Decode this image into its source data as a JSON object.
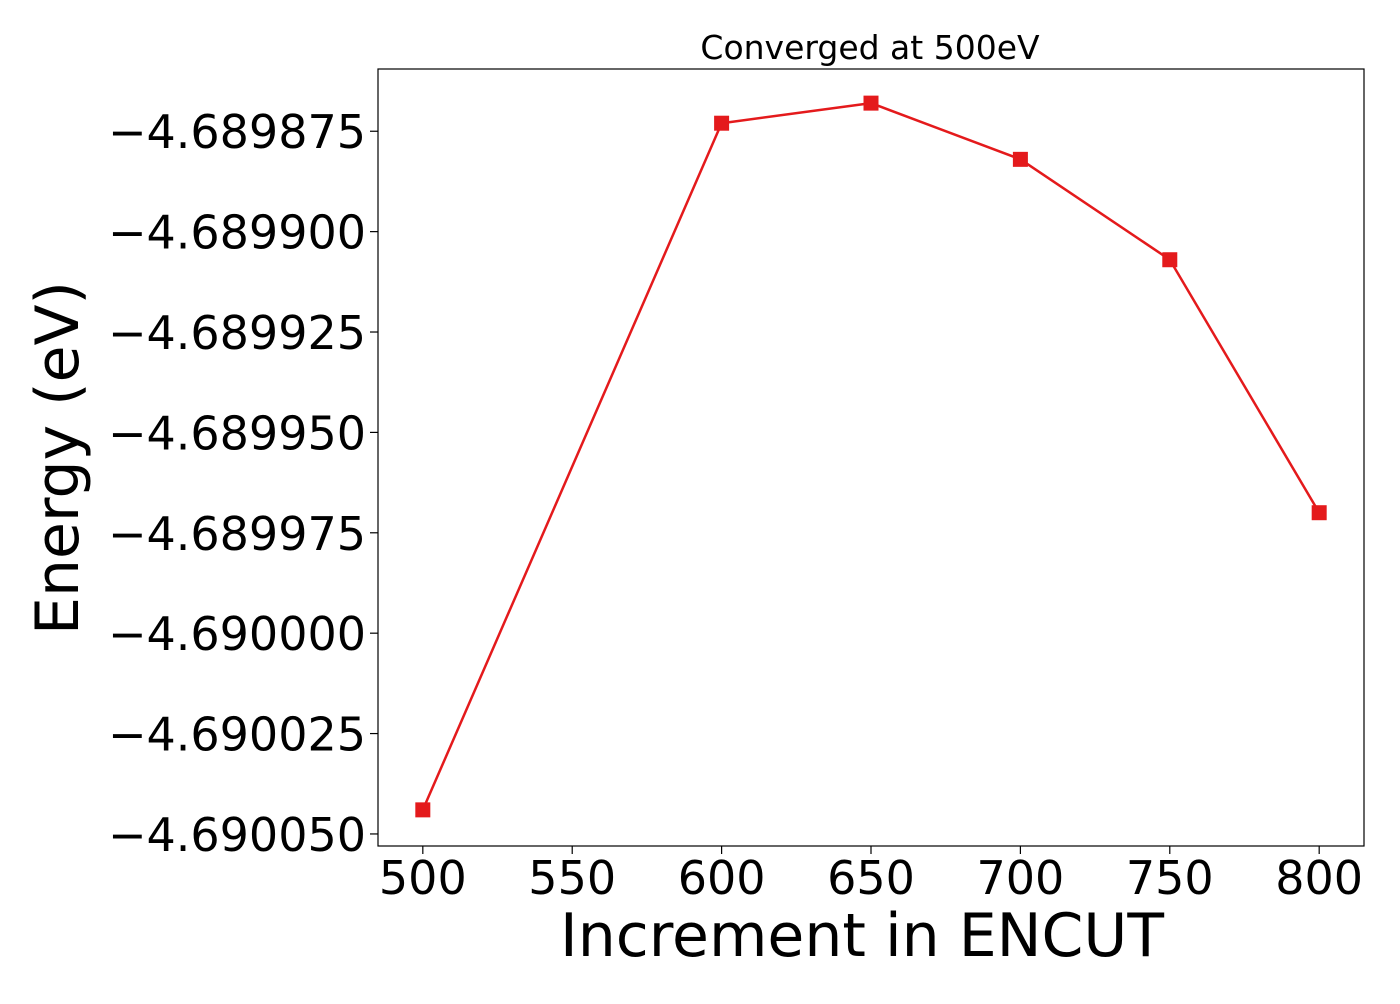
{
  "chart_data": {
    "type": "line",
    "title": "Converged at 500eV",
    "xlabel": "Increment in ENCUT",
    "ylabel": "Energy (eV)",
    "x": [
      500,
      600,
      650,
      700,
      750,
      800
    ],
    "series": [
      {
        "values": [
          -4.690044,
          -4.689873,
          -4.689868,
          -4.689882,
          -4.689907,
          -4.68997
        ],
        "color": "#e41a1c",
        "marker": "square"
      }
    ],
    "x_ticks": [
      500,
      550,
      600,
      650,
      700,
      750,
      800
    ],
    "x_tick_labels": [
      "500",
      "550",
      "600",
      "650",
      "700",
      "750",
      "800"
    ],
    "y_ticks": [
      -4.69005,
      -4.690025,
      -4.69,
      -4.689975,
      -4.68995,
      -4.689925,
      -4.6899,
      -4.689875
    ],
    "y_tick_labels": [
      "−4.690050",
      "−4.690025",
      "−4.690000",
      "−4.689975",
      "−4.689950",
      "−4.689925",
      "−4.689900",
      "−4.689875"
    ],
    "xlim": [
      485,
      815
    ],
    "ylim": [
      -4.690053,
      -4.6898595
    ],
    "grid": false,
    "legend": "none"
  }
}
